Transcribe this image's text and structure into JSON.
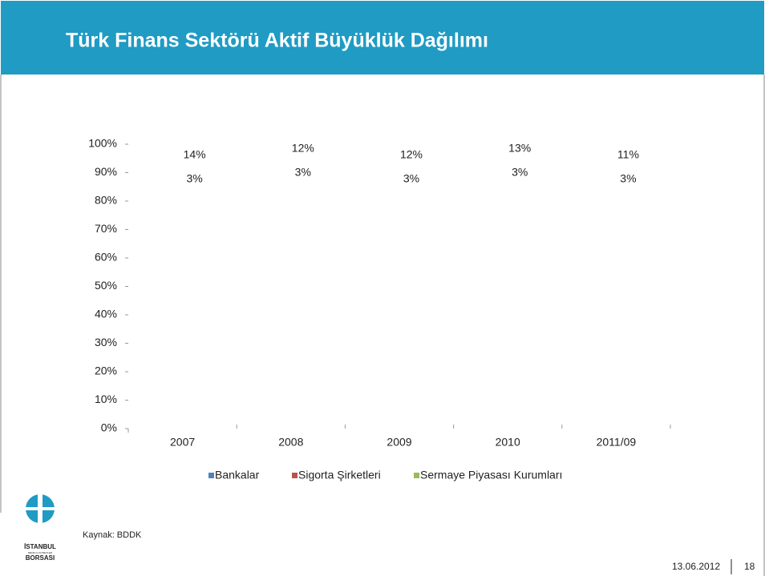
{
  "header": {
    "title": "Türk Finans Sektörü Aktif Büyüklük Dağılımı"
  },
  "chart_data": {
    "type": "stacked-bar-labels",
    "categories": [
      "2007",
      "2008",
      "2009",
      "2010",
      "2011/09"
    ],
    "series": [
      {
        "name": "Bankalar",
        "color": "#4f81bd"
      },
      {
        "name": "Sigorta Şirketleri",
        "color": "#c0504d",
        "values": [
          3,
          3,
          3,
          3,
          3
        ],
        "value_labels": [
          "3%",
          "3%",
          "3%",
          "3%",
          "3%"
        ]
      },
      {
        "name": "Sermaye Piyasası Kurumları",
        "color": "#9bbb59",
        "values": [
          14,
          12,
          12,
          13,
          11
        ],
        "value_labels": [
          "14%",
          "12%",
          "12%",
          "13%",
          "11%"
        ]
      }
    ],
    "ylim": [
      0,
      100
    ],
    "yticks": [
      {
        "value": 0,
        "label": "0%"
      },
      {
        "value": 10,
        "label": "10%"
      },
      {
        "value": 20,
        "label": "20%"
      },
      {
        "value": 30,
        "label": "30%"
      },
      {
        "value": 40,
        "label": "40%"
      },
      {
        "value": 50,
        "label": "50%"
      },
      {
        "value": 60,
        "label": "60%"
      },
      {
        "value": 70,
        "label": "70%"
      },
      {
        "value": 80,
        "label": "80%"
      },
      {
        "value": 90,
        "label": "90%"
      },
      {
        "value": 100,
        "label": "100%"
      }
    ],
    "legend": "bottom"
  },
  "footer": {
    "source": "Kaynak: BDDK",
    "date": "13.06.2012",
    "page": "18"
  },
  "logo": {
    "line1": "İSTANBUL",
    "line2": "MENKUL KIYMETLER",
    "line3": "BORSASI"
  }
}
